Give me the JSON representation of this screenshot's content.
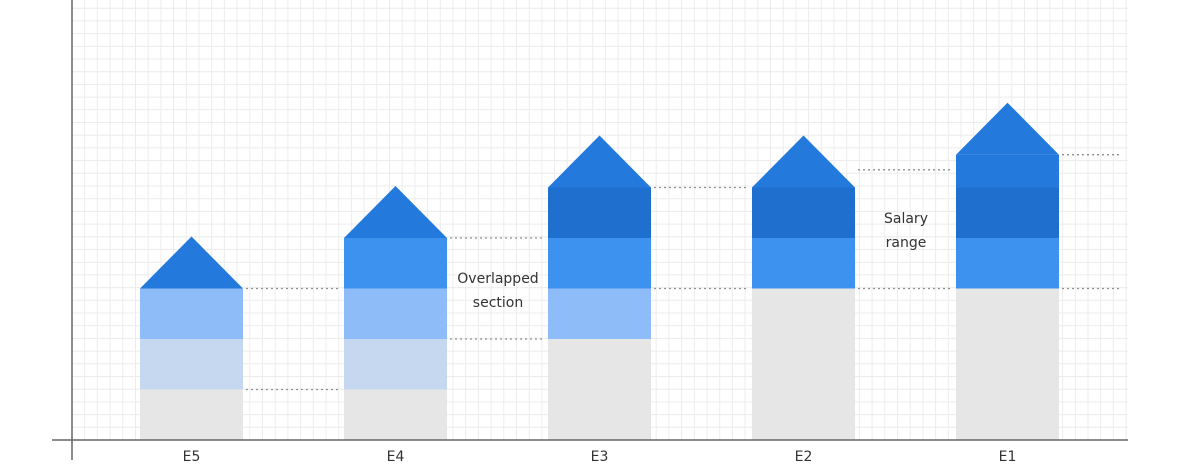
{
  "chart_data": {
    "type": "bar",
    "categories": [
      "E5",
      "E4",
      "E3",
      "E2",
      "E1"
    ],
    "series": [
      {
        "id": "base",
        "values": [
          1,
          1,
          2,
          3,
          3
        ],
        "color": "#e6e6e6"
      },
      {
        "id": "band1",
        "values": [
          1,
          1,
          0,
          0,
          0
        ],
        "color": "#c5d8f0"
      },
      {
        "id": "band2",
        "values": [
          1,
          1,
          1,
          0,
          0
        ],
        "color": "#8dbcf8"
      },
      {
        "id": "band3",
        "values": [
          0,
          1,
          1,
          1,
          1
        ],
        "color": "#3d92f0"
      },
      {
        "id": "band4",
        "values": [
          0,
          0,
          1,
          1,
          1
        ],
        "color": "#1f6fce"
      },
      {
        "id": "band5",
        "values": [
          0,
          0,
          0,
          0,
          0.65
        ],
        "color": "#2479dc"
      }
    ],
    "roof_color": "#2479dc",
    "ylim": [
      0,
      8
    ],
    "grid": true,
    "annotations": [
      {
        "id": "overlap",
        "lines": [
          "Overlapped",
          "section"
        ]
      },
      {
        "id": "salary",
        "lines": [
          "Salary",
          "range"
        ]
      }
    ],
    "colors": {
      "grid": "#ececec",
      "axis": "#666666",
      "dotted": "#8f8f8f"
    }
  }
}
